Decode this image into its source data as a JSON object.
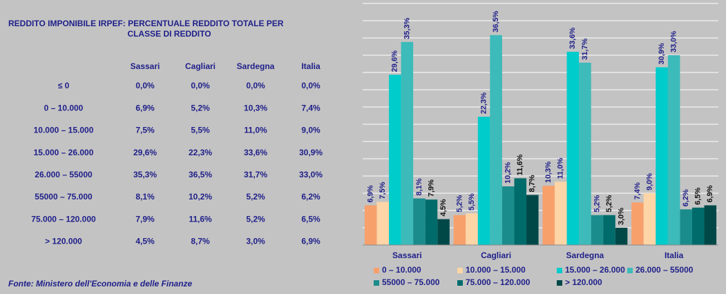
{
  "table": {
    "title_lines": [
      "REDDITO IMPONIBILE IRPEF: PERCENTUALE REDDITO TOTALE PER",
      "CLASSE DI REDDITO"
    ],
    "header": [
      "Sassari",
      "Cagliari",
      "Sardegna",
      "Italia"
    ],
    "rows": [
      [
        "≤ 0",
        "0,0%",
        "0,0%",
        "0,0%",
        "0,0%"
      ],
      [
        "0 – 10.000",
        "6,9%",
        "5,2%",
        "10,3%",
        "7,4%"
      ],
      [
        "10.000 – 15.000",
        "7,5%",
        "5,5%",
        "11,0%",
        "9,0%"
      ],
      [
        "15.000 – 26.000",
        "29,6%",
        "22,3%",
        "33,6%",
        "30,9%"
      ],
      [
        "26.000 – 55000",
        "35,3%",
        "36,5%",
        "31,7%",
        "33,0%"
      ],
      [
        "55000 – 75.000",
        "8,1%",
        "10,2%",
        "5,2%",
        "6,2%"
      ],
      [
        "75.000 – 120.000",
        "7,9%",
        "11,6%",
        "5,2%",
        "6,5%"
      ],
      [
        "> 120.000",
        "4,5%",
        "8,7%",
        "3,0%",
        "6,9%"
      ]
    ],
    "source": "Fonte: Ministero dell'Economia e delle Finanze"
  },
  "chart_data": {
    "type": "bar",
    "categories": [
      "Sassari",
      "Cagliari",
      "Sardegna",
      "Italia"
    ],
    "series": [
      {
        "name": "0 – 10.000",
        "color": "#f7a06c",
        "values": [
          6.9,
          5.2,
          10.3,
          7.4
        ],
        "value_labels": [
          "6,9%",
          "5,2%",
          "10,3%",
          "7,4%"
        ]
      },
      {
        "name": "10.000 – 15.000",
        "color": "#fdd5a6",
        "values": [
          7.5,
          5.5,
          11.0,
          9.0
        ],
        "value_labels": [
          "7,5%",
          "5,5%",
          "11,0%",
          "9,0%"
        ]
      },
      {
        "name": "15.000 – 26.000",
        "color": "#00cccc",
        "values": [
          29.6,
          22.3,
          33.6,
          30.9
        ],
        "value_labels": [
          "29,6%",
          "22,3%",
          "33,6%",
          "30,9%"
        ]
      },
      {
        "name": "26.000 – 55000",
        "color": "#3dbaba",
        "values": [
          35.3,
          36.5,
          31.7,
          33.0
        ],
        "value_labels": [
          "35,3%",
          "36,5%",
          "31,7%",
          "33,0%"
        ]
      },
      {
        "name": "55000 – 75.000",
        "color": "#1b8c8c",
        "values": [
          8.1,
          10.2,
          5.2,
          6.2
        ],
        "value_labels": [
          "8,1%",
          "10,2%",
          "5,2%",
          "6,2%"
        ]
      },
      {
        "name": "75.000 – 120.000",
        "color": "#006b6b",
        "values": [
          7.9,
          11.6,
          5.2,
          6.5
        ],
        "value_labels": [
          "7,9%",
          "11,6%",
          "5,2%",
          "6,5%"
        ]
      },
      {
        "name": "> 120.000",
        "color": "#004848",
        "values": [
          4.5,
          8.7,
          3.0,
          6.9
        ],
        "value_labels": [
          "4,5%",
          "8,7%",
          "3,0%",
          "6,9%"
        ]
      }
    ],
    "ylim": [
      0,
      42
    ],
    "yticks": [
      0,
      3,
      6,
      9,
      12,
      15,
      18,
      21,
      24,
      27,
      30,
      33,
      36,
      39,
      42
    ],
    "grid": true
  }
}
